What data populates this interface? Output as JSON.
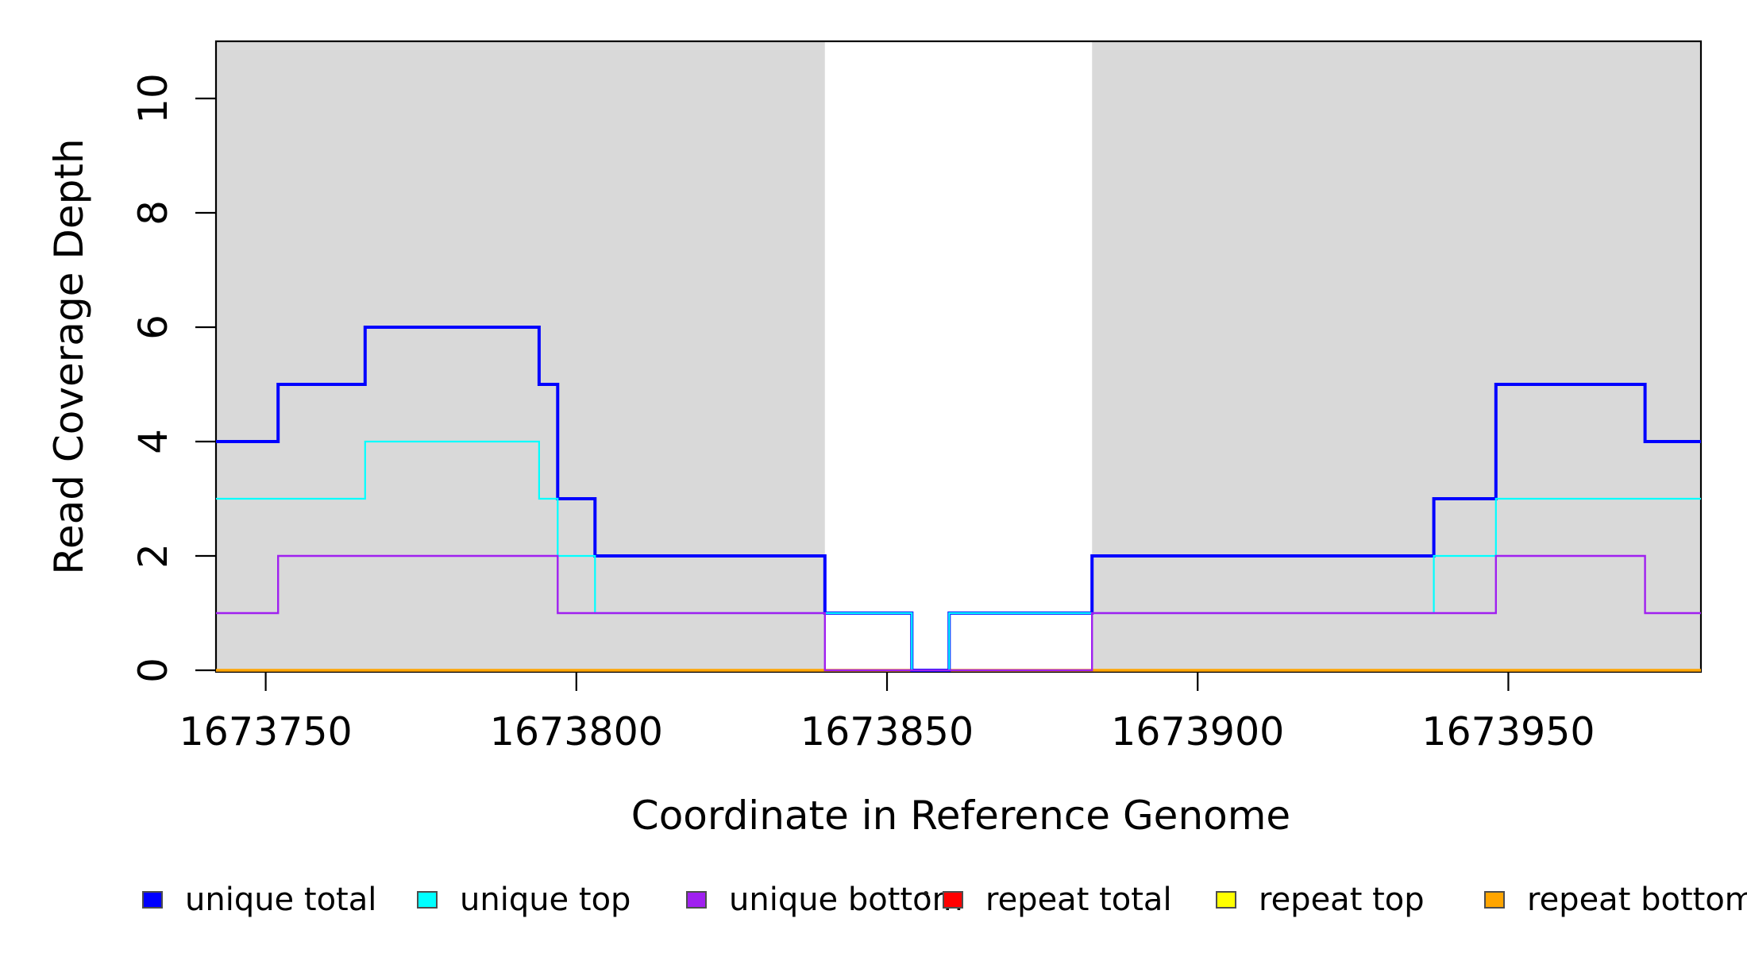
{
  "figure": {
    "background": "#FFFFFF",
    "shaded_region_color": "#D9D9D9",
    "axis_color": "#000000"
  },
  "chart_data": {
    "type": "line",
    "subtype": "step-coverage-plot",
    "xlabel": "Coordinate in Reference Genome",
    "ylabel": "Read Coverage Depth",
    "xlim": [
      1673742,
      1673981
    ],
    "ylim": [
      0,
      11
    ],
    "x_ticks": [
      1673750,
      1673800,
      1673850,
      1673900,
      1673950
    ],
    "y_ticks": [
      0,
      2,
      4,
      6,
      8,
      10
    ],
    "grid": false,
    "legend_position": "bottom",
    "shaded_unique_regions": [
      [
        1673742,
        1673840
      ],
      [
        1673883,
        1673981
      ]
    ],
    "series": [
      {
        "name": "repeat total",
        "color": "#FF0000",
        "line_width": 3,
        "steps": [
          [
            1673742,
            0
          ],
          [
            1673981,
            0
          ]
        ]
      },
      {
        "name": "repeat top",
        "color": "#FFFF00",
        "line_width": 2,
        "steps": [
          [
            1673742,
            0
          ],
          [
            1673981,
            0
          ]
        ]
      },
      {
        "name": "repeat bottom",
        "color": "#FFA500",
        "line_width": 3.5,
        "steps": [
          [
            1673742,
            0
          ],
          [
            1673981,
            0
          ]
        ]
      },
      {
        "name": "unique total",
        "color": "#0000FF",
        "line_width": 4,
        "steps": [
          [
            1673742,
            4
          ],
          [
            1673752,
            5
          ],
          [
            1673766,
            6
          ],
          [
            1673794,
            5
          ],
          [
            1673797,
            3
          ],
          [
            1673803,
            2
          ],
          [
            1673840,
            1
          ],
          [
            1673854,
            0
          ],
          [
            1673860,
            1
          ],
          [
            1673883,
            2
          ],
          [
            1673938,
            3
          ],
          [
            1673948,
            5
          ],
          [
            1673972,
            4
          ],
          [
            1673981,
            4
          ]
        ]
      },
      {
        "name": "unique top",
        "color": "#00FFFF",
        "line_width": 2.2,
        "steps": [
          [
            1673742,
            3
          ],
          [
            1673766,
            4
          ],
          [
            1673794,
            3
          ],
          [
            1673797,
            2
          ],
          [
            1673803,
            1
          ],
          [
            1673854,
            0
          ],
          [
            1673860,
            1
          ],
          [
            1673938,
            2
          ],
          [
            1673948,
            3
          ],
          [
            1673981,
            3
          ]
        ]
      },
      {
        "name": "unique bottom",
        "color": "#A020F0",
        "line_width": 2.4,
        "steps": [
          [
            1673742,
            1
          ],
          [
            1673752,
            2
          ],
          [
            1673797,
            1
          ],
          [
            1673840,
            0
          ],
          [
            1673883,
            1
          ],
          [
            1673948,
            2
          ],
          [
            1673972,
            1
          ],
          [
            1673981,
            1
          ]
        ]
      }
    ],
    "legend": [
      {
        "label": "unique total",
        "color": "#0000FF"
      },
      {
        "label": "unique top",
        "color": "#00FFFF"
      },
      {
        "label": "unique bottom",
        "color": "#A020F0"
      },
      {
        "label": "repeat total",
        "color": "#FF0000"
      },
      {
        "label": "repeat top",
        "color": "#FFFF00"
      },
      {
        "label": "repeat bottom",
        "color": "#FFA500"
      }
    ]
  }
}
